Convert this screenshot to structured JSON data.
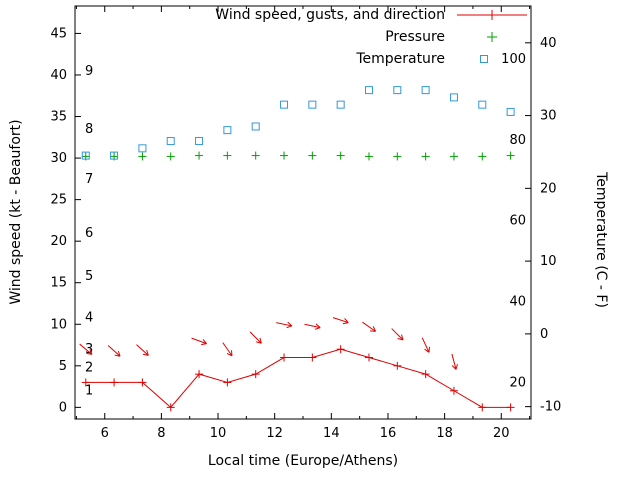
{
  "axes": {
    "x": {
      "label": "Local time (Europe/Athens)",
      "min": 4.95,
      "max": 21.05,
      "major_ticks": [
        6,
        8,
        10,
        12,
        14,
        16,
        18,
        20
      ],
      "minor_ticks": [
        5,
        7,
        9,
        11,
        13,
        15,
        17,
        19,
        21
      ]
    },
    "y_left": {
      "label": "Wind speed (kt - Beaufort)",
      "min": -1.4,
      "max": 48.3,
      "ticks": [
        0,
        5,
        10,
        15,
        20,
        25,
        30,
        35,
        40,
        45
      ],
      "beaufort_labels": [
        {
          "label": "1",
          "kt": 2.0
        },
        {
          "label": "2",
          "kt": 4.8
        },
        {
          "label": "3",
          "kt": 7.0
        },
        {
          "label": "4",
          "kt": 10.8
        },
        {
          "label": "5",
          "kt": 15.8
        },
        {
          "label": "6",
          "kt": 21.0
        },
        {
          "label": "7",
          "kt": 27.5
        },
        {
          "label": "8",
          "kt": 33.5
        },
        {
          "label": "9",
          "kt": 40.5
        }
      ]
    },
    "y_right": {
      "label": "Temperature (C - F)",
      "ticks_celsius": [
        -10,
        0,
        10,
        20,
        30,
        40
      ],
      "fahrenheit_inner_labels": [
        20,
        40,
        60,
        80,
        100
      ],
      "celsius_to_kt_offset": 10.1,
      "celsius_to_kt_slope": 1.142
    }
  },
  "legend": {
    "items": [
      {
        "label": "Wind speed, gusts, and direction",
        "marker": "line-plus",
        "color": "#e00000"
      },
      {
        "label": "Pressure",
        "marker": "plus",
        "color": "#00a000"
      },
      {
        "label": "Temperature",
        "marker": "open-square",
        "color": "#3399dd"
      }
    ]
  },
  "chart_data": {
    "type": "line",
    "title": "",
    "xlabel": "Local time (Europe/Athens)",
    "ylabel_left": "Wind speed (kt - Beaufort)",
    "ylabel_right": "Temperature (C - F)",
    "xlim": [
      4.95,
      21.05
    ],
    "ylim_left_kt": [
      -1.4,
      48.3
    ],
    "ylim_right_c": [
      -11.3,
      44.9
    ],
    "grid": false,
    "legend_position": "top-right-inside",
    "x_hours": [
      5.33,
      6.33,
      7.33,
      8.33,
      9.33,
      10.33,
      11.33,
      12.33,
      13.33,
      14.33,
      15.33,
      16.33,
      17.33,
      18.33,
      19.33,
      20.33
    ],
    "series": [
      {
        "name": "Wind speed (kt)",
        "style": "line+plus",
        "color": "#e00000",
        "axis": "left",
        "values": [
          3,
          3,
          3,
          0,
          4,
          3,
          4,
          6,
          6,
          7,
          6,
          5,
          4,
          2,
          0,
          0
        ]
      },
      {
        "name": "Pressure (inHg)",
        "style": "plus",
        "color": "#00a000",
        "axis": "left",
        "values": [
          30.2,
          30.2,
          30.2,
          30.2,
          30.3,
          30.3,
          30.3,
          30.3,
          30.3,
          30.3,
          30.2,
          30.2,
          30.2,
          30.2,
          30.2,
          30.3
        ]
      },
      {
        "name": "Temperature (C)",
        "style": "open-square",
        "color": "#3399dd",
        "axis": "right",
        "values": [
          24.5,
          24.5,
          25.5,
          26.5,
          26.5,
          28.0,
          28.5,
          31.5,
          31.5,
          31.5,
          33.5,
          33.5,
          33.5,
          32.5,
          31.5,
          30.5
        ]
      }
    ],
    "gust_arrows": {
      "name": "Wind gusts and direction (kt)",
      "color": "#e00000",
      "points": [
        {
          "x": 5.33,
          "kt": 7.0,
          "angle_deg": -40
        },
        {
          "x": 6.33,
          "kt": 6.8,
          "angle_deg": -42
        },
        {
          "x": 7.33,
          "kt": 6.9,
          "angle_deg": -42
        },
        {
          "x": 9.33,
          "kt": 8.0,
          "angle_deg": -20
        },
        {
          "x": 10.33,
          "kt": 7.0,
          "angle_deg": -55
        },
        {
          "x": 11.33,
          "kt": 8.4,
          "angle_deg": -45
        },
        {
          "x": 12.33,
          "kt": 10.0,
          "angle_deg": -12
        },
        {
          "x": 13.33,
          "kt": 9.8,
          "angle_deg": -12
        },
        {
          "x": 14.33,
          "kt": 10.5,
          "angle_deg": -18
        },
        {
          "x": 15.33,
          "kt": 9.7,
          "angle_deg": -35
        },
        {
          "x": 16.33,
          "kt": 8.8,
          "angle_deg": -45
        },
        {
          "x": 17.33,
          "kt": 7.5,
          "angle_deg": -65
        },
        {
          "x": 18.33,
          "kt": 5.5,
          "angle_deg": -75
        }
      ]
    }
  }
}
